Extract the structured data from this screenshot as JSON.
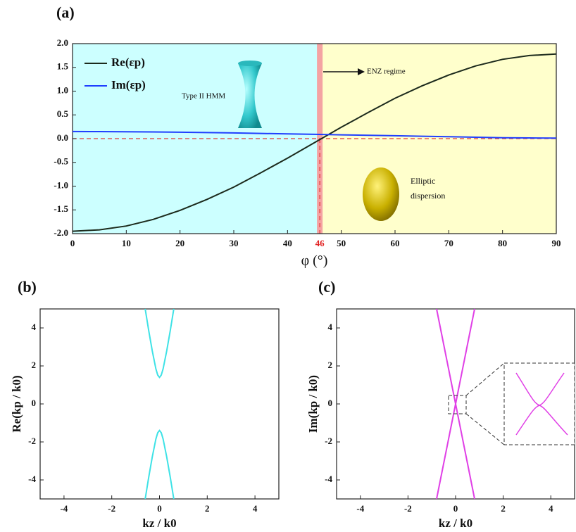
{
  "chart_data": [
    {
      "type": "line",
      "title": "(a)",
      "x_label": "φ (°)",
      "xlim": [
        0,
        90
      ],
      "xticks": [
        0,
        10,
        20,
        30,
        40,
        50,
        60,
        70,
        80,
        90
      ],
      "ylim": [
        -2.0,
        2.0
      ],
      "yticks": [
        {
          "value": -2,
          "label": "-2.0"
        },
        {
          "value": -1.5,
          "label": "-1.5"
        },
        {
          "value": -1,
          "label": "-1.0"
        },
        {
          "value": -0.5,
          "label": "-0.5"
        },
        {
          "value": 0,
          "label": "0.0"
        },
        0.5,
        {
          "value": 1,
          "label": "1.0"
        },
        1.5,
        {
          "value": 2,
          "label": "2.0"
        }
      ],
      "x": [
        0,
        5,
        10,
        15,
        20,
        25,
        30,
        35,
        40,
        45,
        50,
        55,
        60,
        65,
        70,
        75,
        80,
        85,
        90
      ],
      "series": [
        {
          "name": "Re(εp)",
          "color": "#1c2a1c",
          "values": [
            -1.95,
            -1.92,
            -1.84,
            -1.7,
            -1.51,
            -1.28,
            -1.02,
            -0.72,
            -0.41,
            -0.085,
            0.24,
            0.55,
            0.85,
            1.11,
            1.34,
            1.53,
            1.67,
            1.75,
            1.78
          ]
        },
        {
          "name": "Im(εp)",
          "color": "#1f3fff",
          "values": [
            0.15,
            0.148,
            0.145,
            0.14,
            0.135,
            0.128,
            0.12,
            0.11,
            0.1,
            0.09,
            0.08,
            0.07,
            0.06,
            0.05,
            0.04,
            0.03,
            0.02,
            0.015,
            0.01
          ]
        }
      ],
      "legend": "upper left",
      "regions": [
        {
          "from": 0,
          "to": 46,
          "color": "#ccffff"
        },
        {
          "from": 46,
          "to": 90,
          "color": "#ffffcc"
        }
      ],
      "highlight": {
        "x": 46,
        "color": "#f4a3a3"
      },
      "hline": {
        "y": 0,
        "color": "#e03a3a"
      },
      "annotations": [
        "Type II HMM",
        "ENZ regime",
        "Elliptic",
        "dispersion"
      ]
    },
    {
      "type": "line",
      "title": "(b)",
      "x_label": "kz / k0",
      "y_label": "Re(kp / k0)",
      "xlim": [
        -5,
        5
      ],
      "xticks": [
        -4,
        -2,
        0,
        2,
        4
      ],
      "ylim": [
        -5,
        5
      ],
      "yticks": [
        -4,
        -2,
        0,
        2,
        4
      ],
      "series": [
        {
          "color": "#3ee2e6",
          "x": [
            -0.6,
            -0.45,
            -0.3,
            -0.15,
            -0.075,
            0,
            0.075,
            0.15,
            0.3,
            0.45,
            0.6
          ],
          "values": [
            5,
            3.86,
            2.78,
            1.84,
            1.52,
            1.4,
            1.52,
            1.84,
            2.78,
            3.86,
            5
          ]
        },
        {
          "color": "#3ee2e6",
          "x": [
            -0.6,
            -0.45,
            -0.3,
            -0.15,
            -0.075,
            0,
            0.075,
            0.15,
            0.3,
            0.45,
            0.6
          ],
          "values": [
            -5,
            -3.86,
            -2.78,
            -1.84,
            -1.52,
            -1.4,
            -1.52,
            -1.84,
            -2.78,
            -3.86,
            -5
          ]
        }
      ]
    },
    {
      "type": "line",
      "title": "(c)",
      "x_label": "kz / k0",
      "y_label": "Im(kp / k0)",
      "xlim": [
        -5,
        5
      ],
      "xticks": [
        -4,
        -2,
        0,
        2,
        4
      ],
      "ylim": [
        -5,
        5
      ],
      "yticks": [
        -4,
        -2,
        0,
        2,
        4
      ],
      "series": [
        {
          "color": "#e040e6",
          "x": [
            -0.8,
            -0.4,
            0,
            0.4,
            0.8
          ],
          "values": [
            5,
            2.5,
            0,
            -2.5,
            -5
          ]
        },
        {
          "color": "#e040e6",
          "x": [
            -0.8,
            -0.4,
            0,
            0.4,
            0.8
          ],
          "values": [
            -5,
            -2.5,
            0,
            2.5,
            5
          ]
        }
      ]
    }
  ]
}
